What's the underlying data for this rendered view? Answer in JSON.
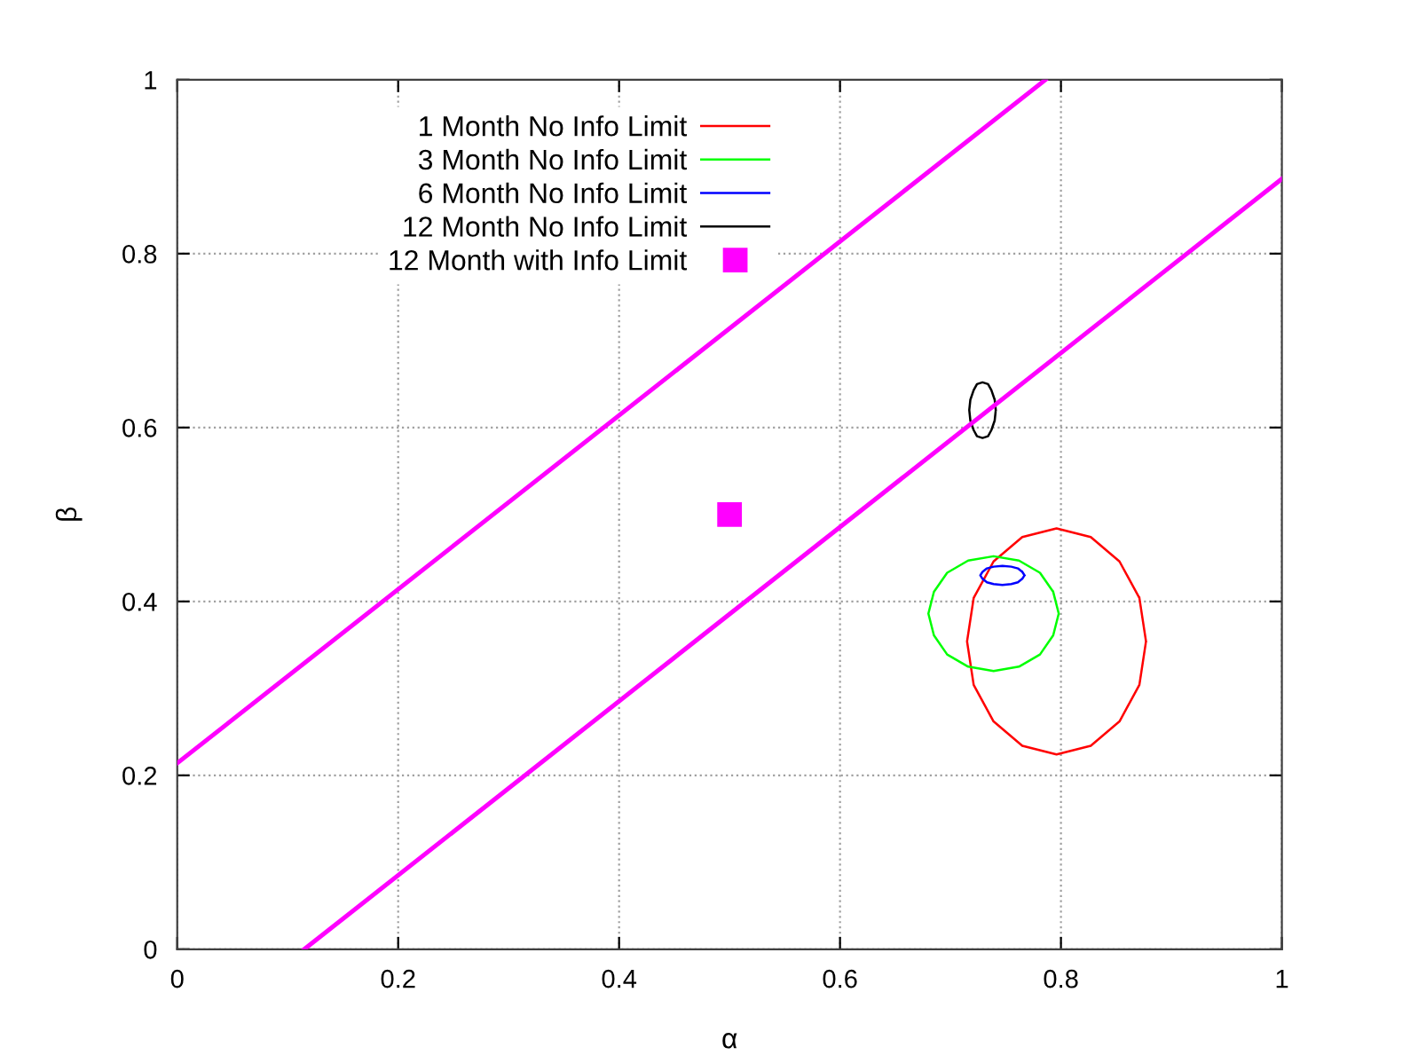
{
  "chart_data": {
    "type": "line",
    "xlabel": "α",
    "ylabel": "β",
    "xlim": [
      0,
      1
    ],
    "ylim": [
      0,
      1
    ],
    "xticks": [
      0,
      0.2,
      0.4,
      0.6,
      0.8,
      1
    ],
    "yticks": [
      0,
      0.2,
      0.4,
      0.6,
      0.8,
      1
    ],
    "grid": true,
    "legend": "top left",
    "series": [
      {
        "name": "1 Month No Info Limit",
        "color": "#ff0000",
        "x": [
          0.877,
          0.871,
          0.853,
          0.827,
          0.796,
          0.765,
          0.739,
          0.721,
          0.715,
          0.721,
          0.739,
          0.765,
          0.796,
          0.827,
          0.853,
          0.871,
          0.877,
          0.871
        ],
        "values": [
          0.354,
          0.404,
          0.446,
          0.474,
          0.484,
          0.474,
          0.446,
          0.404,
          0.354,
          0.304,
          0.262,
          0.234,
          0.224,
          0.234,
          0.262,
          0.304,
          0.354,
          0.404
        ]
      },
      {
        "name": "3 Month No Info Limit",
        "color": "#00ff00",
        "x": [
          0.798,
          0.793,
          0.781,
          0.762,
          0.739,
          0.716,
          0.697,
          0.685,
          0.68,
          0.685,
          0.697,
          0.716,
          0.739,
          0.762,
          0.781,
          0.793,
          0.798,
          0.793
        ],
        "values": [
          0.386,
          0.411,
          0.433,
          0.447,
          0.452,
          0.447,
          0.433,
          0.411,
          0.386,
          0.361,
          0.339,
          0.325,
          0.32,
          0.325,
          0.339,
          0.361,
          0.386,
          0.411
        ]
      },
      {
        "name": "6 Month No Info Limit",
        "color": "#0000ff",
        "x": [
          0.767,
          0.765,
          0.761,
          0.755,
          0.747,
          0.739,
          0.733,
          0.729,
          0.727,
          0.729,
          0.733,
          0.739,
          0.747,
          0.755,
          0.761,
          0.765,
          0.767,
          0.765
        ],
        "values": [
          0.43,
          0.434,
          0.438,
          0.44,
          0.441,
          0.44,
          0.438,
          0.434,
          0.43,
          0.426,
          0.422,
          0.42,
          0.419,
          0.42,
          0.422,
          0.426,
          0.43,
          0.434
        ]
      },
      {
        "name": "12 Month No Info Limit",
        "color": "#000000",
        "x": [
          0.741,
          0.74,
          0.737,
          0.734,
          0.729,
          0.724,
          0.721,
          0.718,
          0.717,
          0.718,
          0.721,
          0.724,
          0.729,
          0.734,
          0.737,
          0.74,
          0.741,
          0.74
        ],
        "values": [
          0.62,
          0.632,
          0.643,
          0.65,
          0.652,
          0.65,
          0.643,
          0.632,
          0.62,
          0.608,
          0.597,
          0.59,
          0.588,
          0.59,
          0.597,
          0.608,
          0.62,
          0.632
        ]
      },
      {
        "name": "12 Month with Info Limit",
        "type": "scatter",
        "marker": "square",
        "color": "#ff00ff",
        "x": [
          0.5
        ],
        "values": [
          0.5
        ]
      },
      {
        "color": "#ff00ff",
        "x": [
          0,
          0.786
        ],
        "values": [
          0.214,
          1
        ]
      },
      {
        "color": "#ff00ff",
        "x": [
          0.115,
          1
        ],
        "values": [
          0,
          0.886
        ]
      }
    ]
  }
}
